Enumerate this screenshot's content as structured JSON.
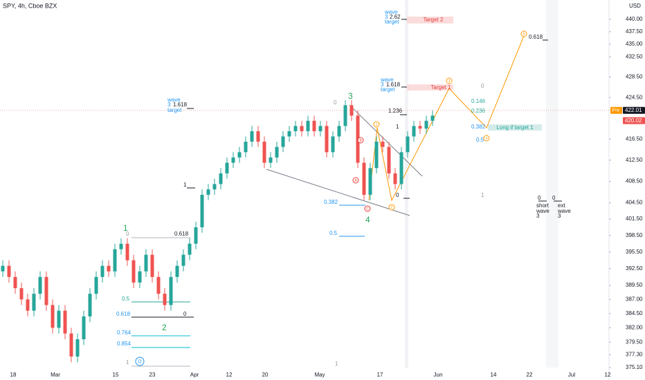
{
  "chart_data": {
    "type": "candlestick",
    "title": "SPY, 4h, Cboe BZX",
    "currency": "USD",
    "log_scale": true,
    "up_color": "#26a69a",
    "down_color": "#ef5350",
    "ylim": [
      375.1,
      443.9
    ],
    "yticks": [
      {
        "value": 440,
        "label": "440.00"
      },
      {
        "value": 437.5,
        "label": "437.50"
      },
      {
        "value": 435,
        "label": "435.00"
      },
      {
        "value": 432.5,
        "label": "432.50"
      },
      {
        "value": 428.5,
        "label": "428.50"
      },
      {
        "value": 424.5,
        "label": "424.50"
      },
      {
        "value": 416.5,
        "label": "416.50"
      },
      {
        "value": 412.5,
        "label": "412.50"
      },
      {
        "value": 408.5,
        "label": "408.50"
      },
      {
        "value": 404.5,
        "label": "404.50"
      },
      {
        "value": 401.5,
        "label": "401.50"
      },
      {
        "value": 398.5,
        "label": "398.50"
      },
      {
        "value": 395.5,
        "label": "395.50"
      },
      {
        "value": 392.5,
        "label": "392.50"
      },
      {
        "value": 389.5,
        "label": "389.50"
      },
      {
        "value": 387,
        "label": "387.00"
      },
      {
        "value": 384.5,
        "label": "384.50"
      },
      {
        "value": 382,
        "label": "382.00"
      },
      {
        "value": 379.5,
        "label": "379.50"
      },
      {
        "value": 377.3,
        "label": "377.30"
      },
      {
        "value": 375.1,
        "label": "375.10"
      }
    ],
    "x_labels": [
      "18",
      "Mar",
      "15",
      "23",
      "Apr",
      "12",
      "20",
      "May",
      "17",
      "Jun",
      "14",
      "22",
      "Jul",
      "12"
    ],
    "open": [
      392,
      393,
      391,
      389,
      387,
      385,
      388,
      391,
      386,
      382,
      385,
      381,
      377,
      380,
      384,
      388,
      391,
      393,
      392,
      396,
      397,
      394,
      390,
      392,
      395,
      391,
      388,
      386,
      391,
      393,
      395,
      397,
      400,
      406,
      407,
      408,
      410,
      412,
      413,
      414,
      416,
      418,
      416,
      412,
      413,
      415,
      417,
      418,
      419,
      418,
      420,
      418,
      419,
      414,
      417,
      419,
      423,
      421,
      412,
      406,
      411,
      416,
      415,
      410,
      408,
      414,
      417,
      419,
      418.5,
      420
    ],
    "high": [
      394,
      394,
      392,
      390,
      388,
      389,
      392,
      392,
      387,
      386,
      386,
      382,
      381,
      385,
      389,
      392,
      394,
      394,
      397,
      398,
      398,
      395,
      393,
      396,
      396,
      392,
      389,
      392,
      394,
      396,
      398,
      401,
      407,
      408,
      409,
      411,
      413,
      414,
      415,
      417,
      419,
      419,
      417,
      414,
      416,
      418,
      419,
      420,
      420,
      421,
      421,
      420,
      420,
      418,
      420,
      424,
      424,
      422,
      413,
      412,
      417,
      417,
      416,
      411,
      415,
      418,
      420,
      420,
      421,
      422
    ],
    "low": [
      391,
      390,
      388,
      386,
      384,
      384,
      387,
      385,
      381,
      381,
      380,
      376,
      376,
      379,
      383,
      387,
      390,
      391,
      391,
      395,
      393,
      389,
      389,
      391,
      390,
      387,
      385,
      385,
      390,
      392,
      394,
      396,
      399,
      405,
      406,
      407,
      409,
      411,
      412,
      413,
      415,
      415,
      411,
      411,
      412,
      414,
      416,
      417,
      417,
      417,
      417,
      417,
      413,
      413,
      416,
      418,
      420,
      411,
      405,
      405,
      410,
      414,
      409,
      407,
      407,
      413,
      416,
      417.5,
      417.5,
      419
    ],
    "close": [
      393,
      391,
      389,
      387,
      385,
      388,
      391,
      386,
      382,
      385,
      381,
      377,
      380,
      384,
      388,
      391,
      393,
      392,
      396,
      397,
      394,
      390,
      392,
      395,
      391,
      388,
      386,
      391,
      393,
      395,
      397,
      400,
      406,
      407,
      408,
      410,
      412,
      413,
      414,
      416,
      418,
      416,
      412,
      413,
      415,
      417,
      418,
      419,
      418,
      420,
      418,
      419,
      414,
      417,
      419,
      423,
      421,
      412,
      406,
      411,
      416,
      415,
      410,
      408,
      414,
      417,
      419,
      418.5,
      420,
      421
    ],
    "pre_label": "Pre",
    "pre_price": 422.01,
    "current_price": 420.02,
    "annotations": [
      "wave",
      "3",
      "2.62",
      "target",
      "Target 2",
      "wave",
      "3",
      "1.618",
      "target",
      "Target 1",
      "wave",
      "3",
      "1.618",
      "target",
      "0",
      "3",
      "1.236",
      "1",
      "0.146",
      "0.236",
      "0.382",
      "Long if target 1",
      "0.5",
      "0",
      "1",
      "0.618",
      "1",
      "0",
      "0.382",
      "0.5",
      "4",
      "1",
      "0",
      "0.618",
      "0.5",
      "0.618",
      "0",
      "2",
      "0.764",
      "0.854",
      "1",
      "1",
      "0",
      "short",
      "wave",
      "3",
      "0",
      "ext",
      "wave",
      "3"
    ],
    "wave_markers": [
      "1",
      "3",
      "2",
      "4",
      "5",
      "A",
      "B",
      "C",
      "D"
    ]
  }
}
